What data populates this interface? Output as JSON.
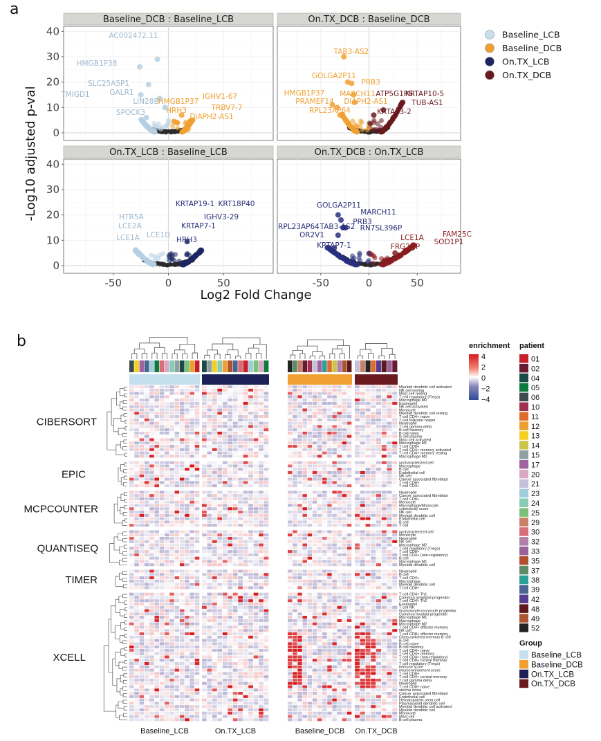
{
  "panel_labels": {
    "a": "a",
    "b": "b"
  },
  "chart_data": [
    {
      "type": "scatter",
      "subtype": "volcano",
      "title": "",
      "xlabel": "Log2 Fold Change",
      "ylabel": "-Log10 adjusted p-val",
      "xlim": [
        -95,
        95
      ],
      "ylim": [
        -3,
        42
      ],
      "xticks": [
        -50,
        0,
        50
      ],
      "yticks": [
        0,
        10,
        20,
        30,
        40
      ],
      "grid": true,
      "legend_position": "right",
      "legend": [
        {
          "name": "Baseline_LCB",
          "color": "#c6dfef"
        },
        {
          "name": "Baseline_DCB",
          "color": "#f0a030"
        },
        {
          "name": "On.TX_LCB",
          "color": "#1c2760"
        },
        {
          "name": "On.TX_DCB",
          "color": "#6a1a1e"
        }
      ],
      "facets": [
        {
          "title": "Baseline_DCB : Baseline_LCB",
          "neg_group": "Baseline_LCB",
          "pos_group": "Baseline_DCB",
          "neg_color": "#b4cfe3",
          "pos_color": "#f0a030",
          "neg_label_color": "#9fb8cf",
          "pos_label_color": "#f0a030",
          "arm_neg": [
            -25,
            5
          ],
          "arm_pos": [
            22,
            5
          ],
          "labeled": [
            {
              "gene": "AC002472.11",
              "x": -10,
              "y": 29,
              "side": "neg"
            },
            {
              "gene": "HMGB1P38",
              "x": -26,
              "y": 26,
              "side": "neg"
            },
            {
              "gene": "SLC25A5P1",
              "x": -18,
              "y": 19,
              "side": "neg"
            },
            {
              "gene": "TMIGD1",
              "x": -25,
              "y": 15,
              "side": "neg"
            },
            {
              "gene": "GALR1",
              "x": -8,
              "y": 13.5,
              "side": "neg"
            },
            {
              "gene": "LIN28B",
              "x": -3,
              "y": 10,
              "side": "neg"
            },
            {
              "gene": "SPOCK3",
              "x": -20,
              "y": 6,
              "side": "neg"
            },
            {
              "gene": "HMGB1P37",
              "x": 8,
              "y": 4,
              "side": "pos"
            },
            {
              "gene": "IGHV1-67",
              "x": 22,
              "y": 5,
              "side": "pos"
            },
            {
              "gene": "TRBV7-7",
              "x": 20,
              "y": 4.5,
              "side": "pos"
            },
            {
              "gene": "HRH3",
              "x": 5,
              "y": 4.5,
              "side": "pos"
            },
            {
              "gene": "DIAPH2-AS1",
              "x": 12,
              "y": 7,
              "side": "pos"
            }
          ]
        },
        {
          "title": "On.TX_DCB : Baseline_DCB",
          "neg_group": "Baseline_DCB",
          "pos_group": "On.TX_DCB",
          "neg_color": "#f0a030",
          "pos_color": "#6a1a1e",
          "neg_label_color": "#f0a030",
          "pos_label_color": "#6a1a1e",
          "arm_neg": [
            -28,
            7
          ],
          "arm_pos": [
            35,
            12
          ],
          "labeled": [
            {
              "gene": "TAB3-AS2",
              "x": -26,
              "y": 30,
              "side": "neg"
            },
            {
              "gene": "GOLGA2P11",
              "x": -22,
              "y": 20,
              "side": "neg"
            },
            {
              "gene": "PRB3",
              "x": -18,
              "y": 19.5,
              "side": "neg"
            },
            {
              "gene": "HMGB1P37",
              "x": -38,
              "y": 11,
              "side": "neg"
            },
            {
              "gene": "MARCH11",
              "x": -16,
              "y": 15,
              "side": "neg"
            },
            {
              "gene": "PRAMEF14",
              "x": -33,
              "y": 10,
              "side": "neg"
            },
            {
              "gene": "DIAPH2-AS1",
              "x": -15,
              "y": 12,
              "side": "neg"
            },
            {
              "gene": "RPL23AP64",
              "x": -30,
              "y": 7,
              "side": "neg"
            },
            {
              "gene": "ATP5G1P6",
              "x": 15,
              "y": 9,
              "side": "pos"
            },
            {
              "gene": "KRTAP10-5",
              "x": 35,
              "y": 12,
              "side": "pos"
            },
            {
              "gene": "TUB-AS1",
              "x": 33,
              "y": 11,
              "side": "pos"
            },
            {
              "gene": "KRTAP3-2",
              "x": 5,
              "y": 7,
              "side": "pos"
            }
          ]
        },
        {
          "title": "On.TX_LCB : Baseline_LCB",
          "neg_group": "Baseline_LCB",
          "pos_group": "On.TX_LCB",
          "neg_color": "#b4cfe3",
          "pos_color": "#1c2760",
          "neg_label_color": "#9fb8cf",
          "pos_label_color": "#2a2f78",
          "arm_neg": [
            -30,
            6
          ],
          "arm_pos": [
            30,
            6
          ],
          "labeled": [
            {
              "gene": "KRTAP19-1",
              "x": 29,
              "y": 6,
              "side": "pos"
            },
            {
              "gene": "KRT18P40",
              "x": 30,
              "y": 6,
              "side": "pos"
            },
            {
              "gene": "IGHV3-29",
              "x": 29,
              "y": 5.5,
              "side": "pos"
            },
            {
              "gene": "KRTAP7-1",
              "x": 28,
              "y": 5,
              "side": "pos"
            },
            {
              "gene": "HRH3",
              "x": 17,
              "y": 9.5,
              "side": "pos"
            },
            {
              "gene": "HTR5A",
              "x": -30,
              "y": 6,
              "side": "neg"
            },
            {
              "gene": "LCE2A",
              "x": -28,
              "y": 5,
              "side": "neg"
            },
            {
              "gene": "LCE1A",
              "x": -27,
              "y": 4.5,
              "side": "neg"
            },
            {
              "gene": "LCE1D",
              "x": -25,
              "y": 4,
              "side": "neg"
            }
          ]
        },
        {
          "title": "On.TX_DCB : On.TX_LCB",
          "neg_group": "On.TX_LCB",
          "pos_group": "On.TX_DCB",
          "neg_color": "#28307f",
          "pos_color": "#8a1c20",
          "neg_label_color": "#2a2f78",
          "pos_label_color": "#8a1c20",
          "arm_neg": [
            -43,
            7
          ],
          "arm_pos": [
            47,
            8
          ],
          "labeled": [
            {
              "gene": "GOLGA2P11",
              "x": -32,
              "y": 20,
              "side": "neg"
            },
            {
              "gene": "MARCH11",
              "x": -29,
              "y": 18,
              "side": "neg"
            },
            {
              "gene": "PRB3",
              "x": -26,
              "y": 15,
              "side": "neg"
            },
            {
              "gene": "RPL23AP64",
              "x": -43,
              "y": 7,
              "side": "neg"
            },
            {
              "gene": "TAB3-AS2",
              "x": -27,
              "y": 15,
              "side": "neg"
            },
            {
              "gene": "RN7SL396P",
              "x": -24,
              "y": 15,
              "side": "neg"
            },
            {
              "gene": "OR2V1",
              "x": -32,
              "y": 12,
              "side": "neg"
            },
            {
              "gene": "KRTAP7-1",
              "x": -36,
              "y": 7,
              "side": "neg"
            },
            {
              "gene": "FAM25C",
              "x": 47,
              "y": 8,
              "side": "pos"
            },
            {
              "gene": "SOD1P1",
              "x": 45,
              "y": 7,
              "side": "pos"
            },
            {
              "gene": "LCE1A",
              "x": 38,
              "y": 6,
              "side": "pos"
            },
            {
              "gene": "FRG2HP",
              "x": 27,
              "y": 5,
              "side": "pos"
            }
          ]
        }
      ]
    },
    {
      "type": "heatmap",
      "title": "",
      "color_scale": {
        "title": "enrichment",
        "min": -4,
        "max": 4,
        "ticks": [
          4,
          2,
          0,
          -2,
          -4
        ],
        "low": "#2b4c9a",
        "mid": "#ffffff",
        "high": "#d7191c"
      },
      "column_groups": [
        {
          "name": "Baseline_LCB",
          "color": "#c6dfef",
          "patients": [
            "06",
            "13",
            "17",
            "39",
            "23",
            "05",
            "30",
            "20",
            "24",
            "15",
            "04",
            "25",
            "12",
            "01"
          ]
        },
        {
          "name": "On.TX_LCB",
          "color": "#1c2056",
          "patients": [
            "04",
            "15",
            "13",
            "24",
            "12",
            "35",
            "39",
            "30",
            "01",
            "23",
            "25",
            "20",
            "05"
          ]
        },
        {
          "name": "Baseline_DCB",
          "color": "#f0a030",
          "patients": [
            "52",
            "37",
            "29",
            "02",
            "10",
            "21",
            "17",
            "38",
            "11",
            "14",
            "32",
            "49",
            "48"
          ]
        },
        {
          "name": "On.TX_DCB",
          "color": "#6a1a1e",
          "patients": [
            "21",
            "29",
            "52",
            "11",
            "42",
            "48",
            "33",
            "02"
          ]
        }
      ],
      "row_groups": [
        {
          "name": "CIBERSORT",
          "rows": [
            "Myeloid dendritic cell activated",
            "NK cell resting",
            "Mast cell resting",
            "T cell regulatory (Tregs)",
            "Macrophage M0",
            "Eosinophil",
            "NK cell activated",
            "Monocyte",
            "Myeloid dendritic cell resting",
            "T cell CD4+ naive",
            "T cell follicular helper",
            "Neutrophil",
            "T cell gamma delta",
            "B cell memory",
            "B cell naive",
            "B cell plasma",
            "Mast cell activated",
            "Macrophage M1",
            "T cell CD8+",
            "T cell CD4+ memory activated",
            "T cell CD4+ memory resting",
            "Macrophage M2"
          ]
        },
        {
          "name": "EPIC",
          "rows": [
            "uncharacterized cell",
            "Macrophage",
            "B cell",
            "Endothelial cell",
            "NK cell",
            "Cancer associated fibroblast",
            "T cell CD8+",
            "T cell CD4+"
          ]
        },
        {
          "name": "MCPCOUNTER",
          "rows": [
            "Neutrophil",
            "Cancer associated fibroblast",
            "T cell CD8+",
            "Monocyte",
            "Macrophage/Monocyte",
            "cytotoxicity score",
            "NK cell",
            "Myeloid dendritic cell",
            "Endothelial cell",
            "B cell",
            "T cell"
          ]
        },
        {
          "name": "QUANTISEQ",
          "rows": [
            "uncharacterized cell",
            "Monocyte",
            "Neutrophil",
            "NK cell",
            "Macrophage M2",
            "T cell regulatory (Tregs)",
            "T cell CD8+",
            "T cell CD4+ (non-regulatory)",
            "B cell",
            "Macrophage M1",
            "Myeloid dendritic cell"
          ]
        },
        {
          "name": "TIMER",
          "rows": [
            "Neutrophil",
            "B cell",
            "T cell CD4+",
            "Macrophage",
            "Myeloid dendritic cell",
            "T cell CD8+"
          ]
        },
        {
          "name": "XCELL",
          "rows": [
            "T cell CD4+ Th1",
            "Common lymphoid progenitor",
            "T cell CD4+ Th2",
            "Eosinophil",
            "T cell NK",
            "Granulocyte-monocyte progenitor",
            "Common myeloid progenitor",
            "Macrophage M1",
            "Macrophage",
            "Macrophage M2",
            "T cell CD4+ effector memory",
            "NK cell",
            "T cell CD8+ effector memory",
            "Class-switched memory B cell",
            "B cell",
            "B cell naive",
            "B cell memory",
            "T cell CD4+ naive",
            "T cell CD4+ memory",
            "T cell CD4+ (non-regulatory)",
            "T cell CD8+ central memory",
            "T cell regulatory (Tregs)",
            "immune score",
            "microenvironment score",
            "T cell CD8+",
            "T cell CD4+ central memory",
            "T cell gamma delta",
            "Neutrophil",
            "T cell CD8+ naive",
            "stroma score",
            "Cancer associated fibroblast",
            "Endothelial cell",
            "Hematopoietic stem cell",
            "Plasmacytoid dendritic cell",
            "Myeloid dendritic cell activated",
            "Myeloid dendritic cell",
            "Monocyte",
            "Mast cell",
            "B cell plasma"
          ]
        }
      ],
      "patient_legend": {
        "title": "patient",
        "items": [
          {
            "id": "01",
            "color": "#c8202a"
          },
          {
            "id": "02",
            "color": "#6a1a30"
          },
          {
            "id": "04",
            "color": "#1c4a44"
          },
          {
            "id": "05",
            "color": "#0f7a40"
          },
          {
            "id": "06",
            "color": "#3c4c4c"
          },
          {
            "id": "10",
            "color": "#a03050"
          },
          {
            "id": "11",
            "color": "#e06a2a"
          },
          {
            "id": "12",
            "color": "#eda030"
          },
          {
            "id": "13",
            "color": "#f5d020"
          },
          {
            "id": "14",
            "color": "#cbc44a"
          },
          {
            "id": "15",
            "color": "#90a0a0"
          },
          {
            "id": "17",
            "color": "#a064a0"
          },
          {
            "id": "20",
            "color": "#dba8c4"
          },
          {
            "id": "21",
            "color": "#c4c0d8"
          },
          {
            "id": "23",
            "color": "#a0ccdc"
          },
          {
            "id": "24",
            "color": "#88ccb4"
          },
          {
            "id": "25",
            "color": "#7cc07a"
          },
          {
            "id": "29",
            "color": "#c88066"
          },
          {
            "id": "30",
            "color": "#d86c78"
          },
          {
            "id": "32",
            "color": "#b080a8"
          },
          {
            "id": "33",
            "color": "#98649a"
          },
          {
            "id": "35",
            "color": "#b05030"
          },
          {
            "id": "37",
            "color": "#5e8a68"
          },
          {
            "id": "38",
            "color": "#2aa096"
          },
          {
            "id": "39",
            "color": "#4a6690"
          },
          {
            "id": "42",
            "color": "#583c90"
          },
          {
            "id": "48",
            "color": "#5c1a1c"
          },
          {
            "id": "49",
            "color": "#aa5430"
          },
          {
            "id": "52",
            "color": "#242424"
          }
        ]
      },
      "group_legend": {
        "title": "Group",
        "items": [
          {
            "name": "Baseline_LCB",
            "color": "#c6dfef"
          },
          {
            "name": "Baseline_DCB",
            "color": "#f0a030"
          },
          {
            "name": "On.TX_LCB",
            "color": "#1c2056"
          },
          {
            "name": "On.TX_DCB",
            "color": "#6a1a1e"
          }
        ]
      },
      "column_labels": [
        "Baseline_LCB",
        "On.TX_LCB",
        "Baseline_DCB",
        "On.TX_DCB"
      ]
    }
  ]
}
